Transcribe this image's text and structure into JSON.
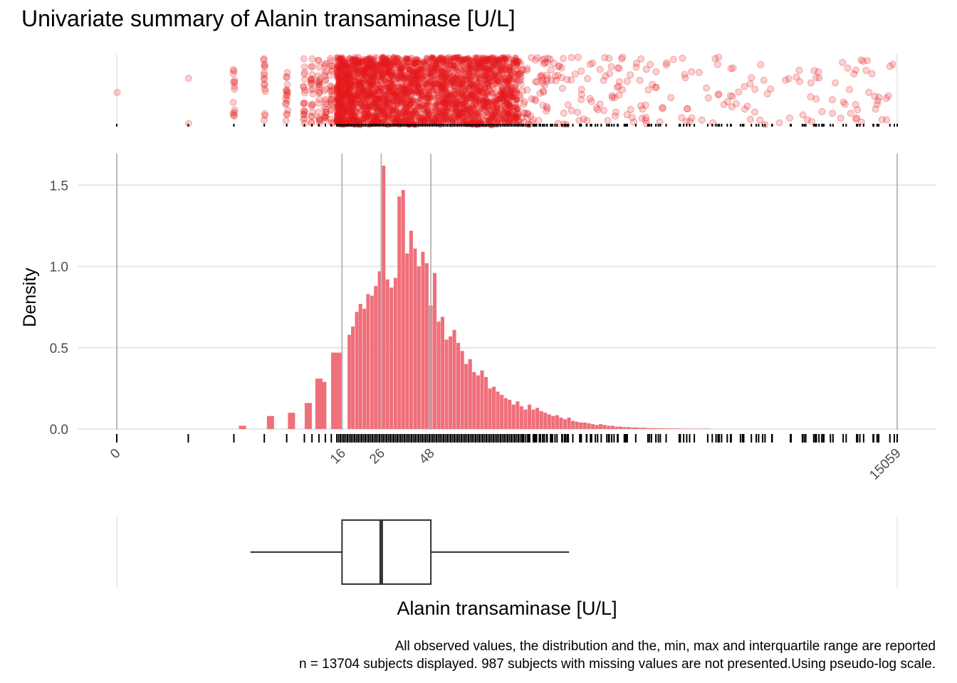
{
  "title": "Univariate summary of Alanin transaminase [U/L]",
  "caption": {
    "line1": "All observed values, the distribution and the, min, max and interquartile range are reported",
    "line2": "n = 13704 subjects displayed. 987 subjects with missing values are not presented.Using pseudo-log scale."
  },
  "colors": {
    "points": "#e41a1c",
    "bars": "#ef6f7a",
    "box": "#333333",
    "grid": "#e6e6e6",
    "ref_lines": "#b3b3b3"
  },
  "chart_data": {
    "type": "bar",
    "transform": "pseudo-log",
    "xlabel": "Alanin transaminase [U/L]",
    "ylabel": "Density",
    "ylim": [
      0,
      1.7
    ],
    "y_ticks": [
      0.0,
      0.5,
      1.0,
      1.5
    ],
    "y_tick_labels": [
      "0.0",
      "0.5",
      "1.0",
      "1.5"
    ],
    "x_ticks": [
      0,
      16,
      26,
      48,
      15059
    ],
    "x_tick_labels": [
      "0",
      "16",
      "26",
      "48",
      "15059"
    ],
    "reference_lines": [
      0,
      16,
      26,
      48,
      15059
    ],
    "summary": {
      "min": 0,
      "q1": 16,
      "median": 26,
      "q3": 48,
      "max": 15059,
      "whisker_low": 5,
      "whisker_high": 264
    },
    "bins": [
      {
        "x": 4.5,
        "density": 0.02
      },
      {
        "x": 6.5,
        "density": 0.08
      },
      {
        "x": 8.5,
        "density": 0.1
      },
      {
        "x": 10.5,
        "density": 0.16
      },
      {
        "x": 12,
        "density": 0.31
      },
      {
        "x": 12.6,
        "density": 0.29
      },
      {
        "x": 15,
        "density": 0.47
      },
      {
        "x": 17.5,
        "density": 0.58
      },
      {
        "x": 18.3,
        "density": 0.63
      },
      {
        "x": 19.2,
        "density": 0.72
      },
      {
        "x": 20.1,
        "density": 0.77
      },
      {
        "x": 21.1,
        "density": 0.74
      },
      {
        "x": 22.1,
        "density": 0.83
      },
      {
        "x": 23.2,
        "density": 0.82
      },
      {
        "x": 24.3,
        "density": 0.88
      },
      {
        "x": 25.5,
        "density": 0.97
      },
      {
        "x": 26.8,
        "density": 1.62
      },
      {
        "x": 28.1,
        "density": 0.92
      },
      {
        "x": 29.5,
        "density": 0.87
      },
      {
        "x": 31,
        "density": 0.93
      },
      {
        "x": 32.5,
        "density": 1.43
      },
      {
        "x": 34.1,
        "density": 1.47
      },
      {
        "x": 35.8,
        "density": 1.08
      },
      {
        "x": 37.6,
        "density": 1.22
      },
      {
        "x": 39.5,
        "density": 1.11
      },
      {
        "x": 41.4,
        "density": 1.0
      },
      {
        "x": 43.5,
        "density": 1.09
      },
      {
        "x": 45.6,
        "density": 1.02
      },
      {
        "x": 47.9,
        "density": 0.76
      },
      {
        "x": 50.3,
        "density": 0.96
      },
      {
        "x": 52.8,
        "density": 0.66
      },
      {
        "x": 55.4,
        "density": 0.69
      },
      {
        "x": 58.2,
        "density": 0.55
      },
      {
        "x": 61.1,
        "density": 0.57
      },
      {
        "x": 64.1,
        "density": 0.61
      },
      {
        "x": 67.3,
        "density": 0.53
      },
      {
        "x": 70.7,
        "density": 0.48
      },
      {
        "x": 74.2,
        "density": 0.4
      },
      {
        "x": 77.9,
        "density": 0.43
      },
      {
        "x": 81.8,
        "density": 0.35
      },
      {
        "x": 85.9,
        "density": 0.33
      },
      {
        "x": 90.2,
        "density": 0.36
      },
      {
        "x": 94.7,
        "density": 0.32
      },
      {
        "x": 99.4,
        "density": 0.25
      },
      {
        "x": 104.4,
        "density": 0.26
      },
      {
        "x": 109.6,
        "density": 0.23
      },
      {
        "x": 115,
        "density": 0.21
      },
      {
        "x": 120.8,
        "density": 0.19
      },
      {
        "x": 126.8,
        "density": 0.18
      },
      {
        "x": 133.1,
        "density": 0.15
      },
      {
        "x": 139.8,
        "density": 0.17
      },
      {
        "x": 146.8,
        "density": 0.14
      },
      {
        "x": 154.1,
        "density": 0.12
      },
      {
        "x": 161.8,
        "density": 0.15
      },
      {
        "x": 169.9,
        "density": 0.12
      },
      {
        "x": 178.4,
        "density": 0.13
      },
      {
        "x": 187.3,
        "density": 0.11
      },
      {
        "x": 196.7,
        "density": 0.1
      },
      {
        "x": 206.5,
        "density": 0.09
      },
      {
        "x": 216.8,
        "density": 0.08
      },
      {
        "x": 227.6,
        "density": 0.085
      },
      {
        "x": 239,
        "density": 0.07
      },
      {
        "x": 251,
        "density": 0.06
      },
      {
        "x": 263.5,
        "density": 0.07
      },
      {
        "x": 276.7,
        "density": 0.05
      },
      {
        "x": 290.6,
        "density": 0.045
      },
      {
        "x": 305.1,
        "density": 0.04
      },
      {
        "x": 320.3,
        "density": 0.04
      },
      {
        "x": 336.3,
        "density": 0.035
      },
      {
        "x": 353.2,
        "density": 0.03
      },
      {
        "x": 370.8,
        "density": 0.025
      },
      {
        "x": 389.4,
        "density": 0.03
      },
      {
        "x": 408.8,
        "density": 0.025
      },
      {
        "x": 429.3,
        "density": 0.02
      },
      {
        "x": 450.7,
        "density": 0.02
      },
      {
        "x": 473.3,
        "density": 0.015
      },
      {
        "x": 497,
        "density": 0.015
      },
      {
        "x": 521.8,
        "density": 0.012
      },
      {
        "x": 547.9,
        "density": 0.012
      },
      {
        "x": 575.3,
        "density": 0.01
      },
      {
        "x": 604,
        "density": 0.01
      },
      {
        "x": 634.2,
        "density": 0.008
      },
      {
        "x": 665.9,
        "density": 0.008
      },
      {
        "x": 699.2,
        "density": 0.006
      },
      {
        "x": 734.2,
        "density": 0.006
      },
      {
        "x": 770.9,
        "density": 0.005
      },
      {
        "x": 809.4,
        "density": 0.005
      },
      {
        "x": 849.9,
        "density": 0.004
      },
      {
        "x": 892.4,
        "density": 0.004
      },
      {
        "x": 937,
        "density": 0.003
      },
      {
        "x": 983.9,
        "density": 0.003
      },
      {
        "x": 1033.1,
        "density": 0.003
      },
      {
        "x": 1084.7,
        "density": 0.002
      },
      {
        "x": 1138.9,
        "density": 0.002
      },
      {
        "x": 1195.9,
        "density": 0.002
      },
      {
        "x": 1255.7,
        "density": 0.002
      },
      {
        "x": 1318.5,
        "density": 0.002
      },
      {
        "x": 1384.4,
        "density": 0.002
      },
      {
        "x": 1453.6,
        "density": 0.002
      }
    ]
  }
}
